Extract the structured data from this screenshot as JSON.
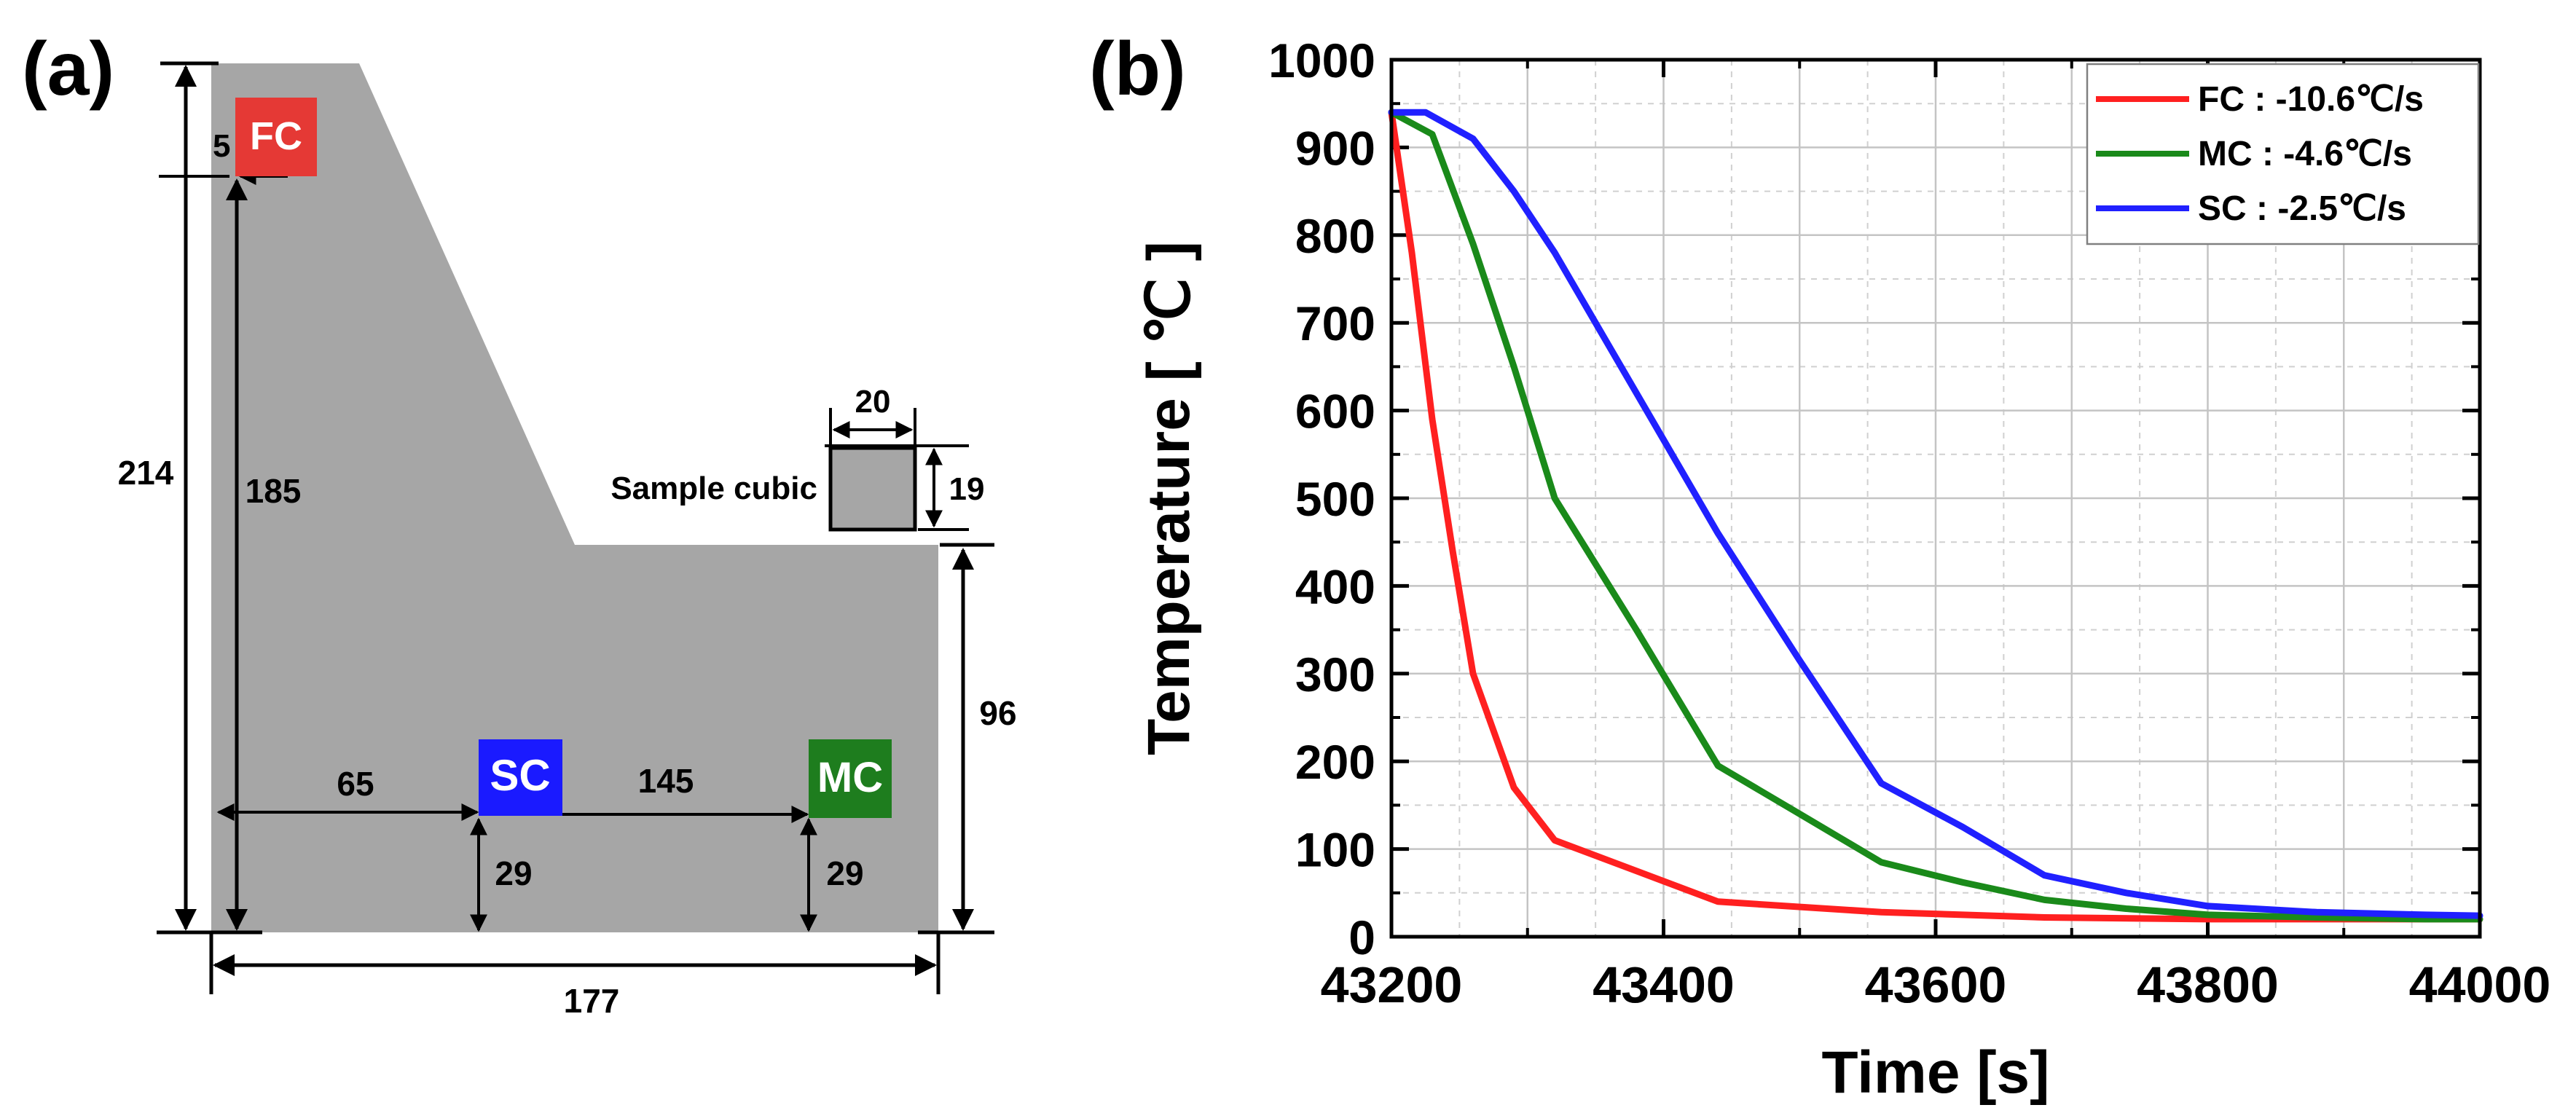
{
  "panel_a": {
    "label": "(a)",
    "probes": [
      {
        "name": "FC",
        "color": "#e53935"
      },
      {
        "name": "SC",
        "color": "#1a1aff"
      },
      {
        "name": "MC",
        "color": "#1e7d1e"
      }
    ],
    "dimensions": {
      "total_height": "214",
      "fc_height": "185",
      "fc_offset": "5",
      "step_height": "96",
      "sc_offset_x": "65",
      "sc_mc_spacing": "145",
      "sc_depth": "29",
      "mc_depth": "29",
      "width": "177",
      "cube_width": "20",
      "cube_height": "19"
    },
    "sample_label": "Sample cubic",
    "colors": {
      "body": "#a6a6a6"
    }
  },
  "chart_data": {
    "type": "line",
    "panel_label": "(b)",
    "title": "",
    "xlabel": "Time [s]",
    "ylabel": "Temperature [ ℃ ]",
    "xlim": [
      43200,
      44000
    ],
    "ylim": [
      0,
      1000
    ],
    "xticks": [
      43200,
      43400,
      43600,
      43800,
      44000
    ],
    "yticks": [
      0,
      100,
      200,
      300,
      400,
      500,
      600,
      700,
      800,
      900,
      1000
    ],
    "grid": true,
    "legend_position": "top-right",
    "series": [
      {
        "name": "FC : -10.6℃/s",
        "color": "#ff2020",
        "x": [
          43200,
          43215,
          43230,
          43245,
          43260,
          43290,
          43320,
          43380,
          43440,
          43560,
          43680,
          43800,
          43920,
          44000
        ],
        "y": [
          940,
          780,
          590,
          440,
          300,
          170,
          110,
          75,
          40,
          28,
          22,
          20,
          20,
          20
        ]
      },
      {
        "name": "MC : -4.6℃/s",
        "color": "#1a8a1a",
        "x": [
          43200,
          43230,
          43260,
          43290,
          43320,
          43380,
          43440,
          43500,
          43560,
          43620,
          43680,
          43740,
          43800,
          43880,
          43960,
          44000
        ],
        "y": [
          940,
          915,
          790,
          650,
          500,
          350,
          195,
          140,
          85,
          62,
          42,
          32,
          25,
          22,
          20,
          20
        ]
      },
      {
        "name": "SC : -2.5℃/s",
        "color": "#2020ff",
        "x": [
          43200,
          43225,
          43260,
          43290,
          43320,
          43380,
          43440,
          43500,
          43560,
          43620,
          43680,
          43740,
          43800,
          43880,
          43960,
          44000
        ],
        "y": [
          940,
          940,
          910,
          850,
          780,
          620,
          460,
          315,
          175,
          125,
          70,
          50,
          35,
          28,
          25,
          24
        ]
      }
    ]
  }
}
